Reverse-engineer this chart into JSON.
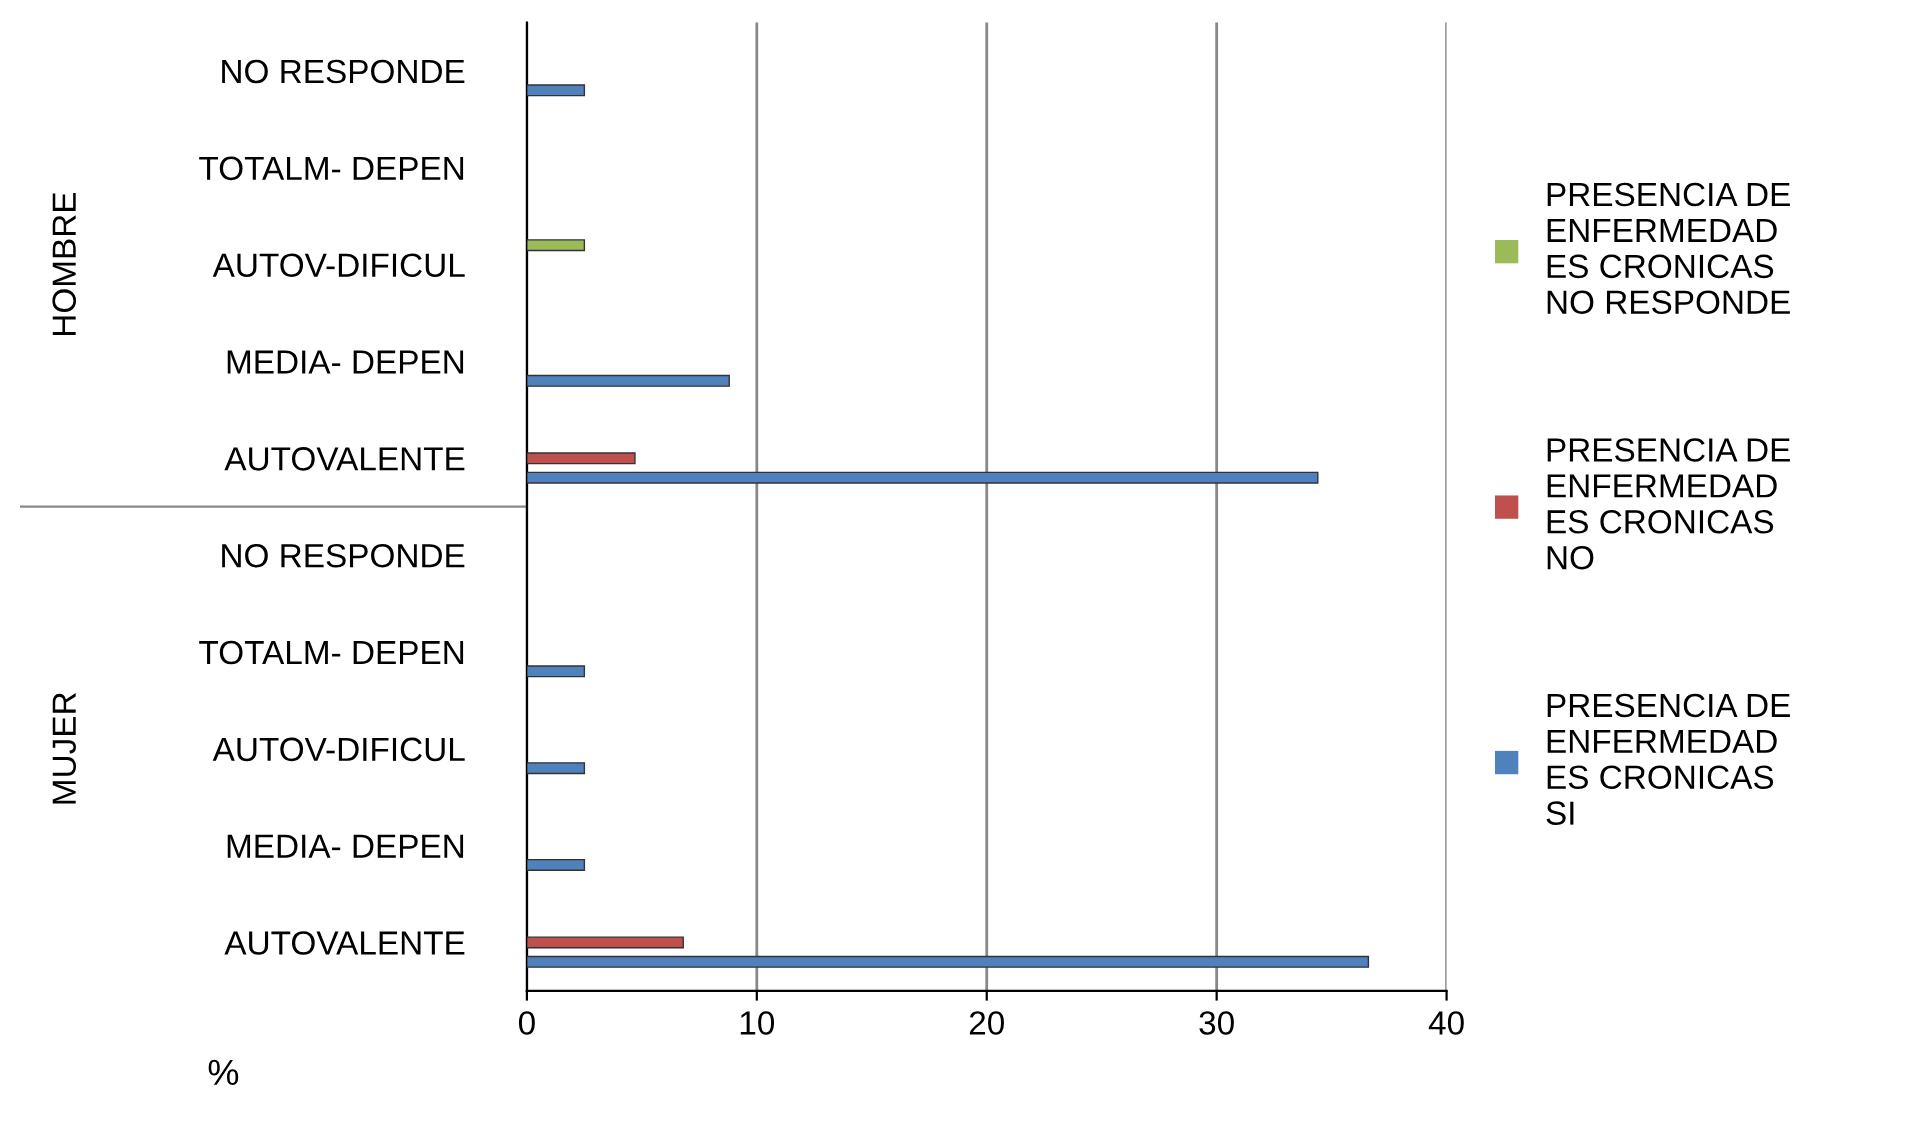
{
  "chart_data": {
    "type": "bar",
    "orientation": "horizontal",
    "xlabel": "%",
    "categories": [
      "NO RESPONDE",
      "TOTALM- DEPEN",
      "AUTOV-DIFICUL",
      "MEDIA- DEPEN",
      "AUTOVALENTE",
      "NO RESPONDE",
      "TOTALM- DEPEN",
      "AUTOV-DIFICUL",
      "MEDIA- DEPEN",
      "AUTOVALENTE"
    ],
    "series": [
      {
        "name": "PRESENCIA DE ENFERMEDAD ES CRONICAS NO RESPONDE",
        "color": "#9bbb59",
        "values": [
          null,
          null,
          2.5,
          null,
          null,
          null,
          null,
          null,
          null,
          null
        ]
      },
      {
        "name": "PRESENCIA DE ENFERMEDAD ES CRONICAS NO",
        "color": "#c0504d",
        "values": [
          null,
          null,
          null,
          null,
          4.7,
          null,
          null,
          null,
          null,
          6.8
        ]
      },
      {
        "name": "PRESENCIA DE ENFERMEDAD ES CRONICAS SI",
        "color": "#4f81bd",
        "values": [
          2.5,
          null,
          null,
          8.8,
          34.4,
          null,
          2.5,
          2.5,
          2.5,
          36.6
        ]
      }
    ],
    "annotations": [
      "HOMBRE",
      "MUJER"
    ],
    "xlim": [
      0,
      40
    ],
    "xticks": [
      0,
      10,
      20,
      30,
      40
    ],
    "grid": "x",
    "legend": "right"
  }
}
